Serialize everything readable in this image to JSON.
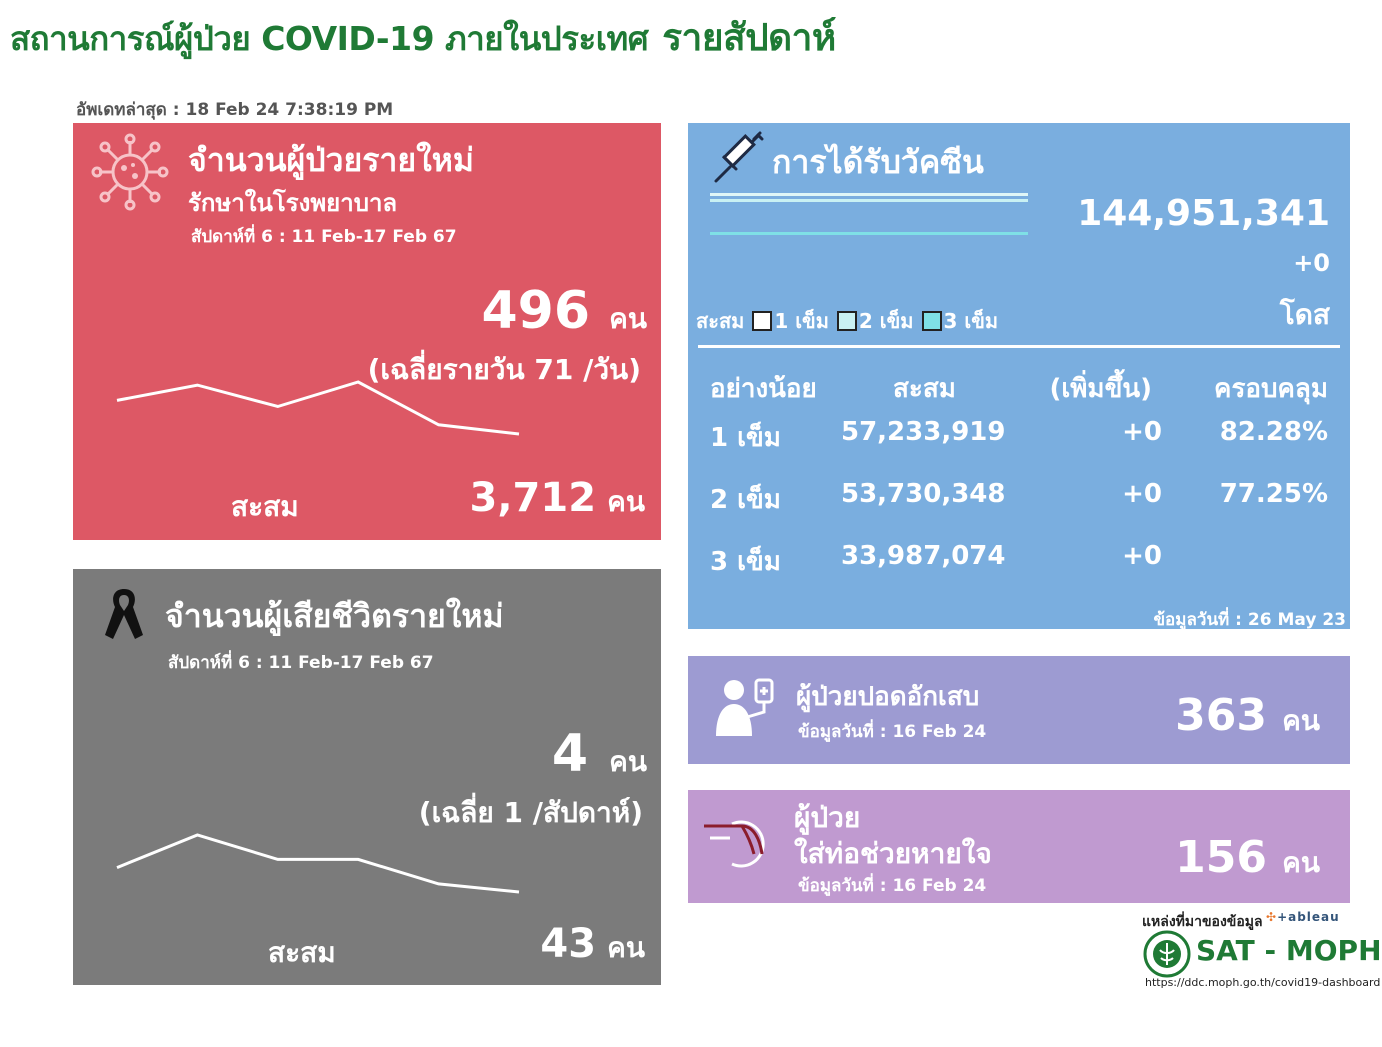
{
  "header": {
    "title": "สถานการณ์ผู้ป่วย COVID-19 ภายในประเทศ",
    "title_weekly": "รายสัปดาห์",
    "updated_label": "อัพเดทล่าสุด : 18 Feb 24 7:38:19 PM"
  },
  "new_cases": {
    "title": "จำนวนผู้ป่วยรายใหม่",
    "subtitle": "รักษาในโรงพยาบาล",
    "week": "สัปดาห์ที่ 6 : 11 Feb-17 Feb 67",
    "value": "496",
    "unit": "คน",
    "avg": "(เฉลี่ยรายวัน 71 /วัน)",
    "cum_label": "สะสม",
    "cum_value": "3,712",
    "cum_unit": "คน",
    "trend": [
      60,
      65,
      58,
      66,
      52,
      49
    ],
    "icon": "virus-icon"
  },
  "deaths": {
    "title": "จำนวนผู้เสียชีวิตรายใหม่",
    "week": "สัปดาห์ที่  6 : 11 Feb-17 Feb 67",
    "value": "4",
    "unit": "คน",
    "avg": "(เฉลี่ย 1 /สัปดาห์)",
    "cum_label": "สะสม",
    "cum_value": "43",
    "cum_unit": "คน",
    "trend": [
      5,
      9,
      6,
      6,
      3,
      2
    ],
    "icon": "ribbon-icon"
  },
  "vaccine": {
    "title": "การได้รับวัคซีน",
    "total": "144,951,341",
    "delta": "+0",
    "unit": "โดส",
    "legend_label": "สะสม",
    "legend": [
      {
        "label": "1 เข็ม",
        "color": "#ffffff"
      },
      {
        "label": "2 เข็ม",
        "color": "#c9f1f3"
      },
      {
        "label": "3 เข็ม",
        "color": "#7fe0e6"
      }
    ],
    "columns": [
      "อย่างน้อย",
      "สะสม",
      "(เพิ่มขึ้น)",
      "ครอบคลุม"
    ],
    "rows": [
      {
        "dose": "1 เข็ม",
        "cum": "57,233,919",
        "inc": "+0",
        "cov": "82.28%"
      },
      {
        "dose": "2 เข็ม",
        "cum": "53,730,348",
        "inc": "+0",
        "cov": "77.25%"
      },
      {
        "dose": "3 เข็ม",
        "cum": "33,987,074",
        "inc": "+0",
        "cov": ""
      }
    ],
    "data_date": "ข้อมูลวันที่ : 26 May 23",
    "icon": "syringe-icon"
  },
  "pneumonia": {
    "title": "ผู้ป่วยปอดอักเสบ",
    "data_date": "ข้อมูลวันที่ : 16 Feb 24",
    "value": "363",
    "unit": "คน",
    "icon": "patient-iv-icon"
  },
  "ventilator": {
    "title1": "ผู้ป่วย",
    "title2": "ใส่ท่อช่วยหายใจ",
    "data_date": "ข้อมูลวันที่ : 16 Feb 24",
    "value": "156",
    "unit": "คน",
    "icon": "intubation-icon"
  },
  "source": {
    "label": "แหล่งที่มาของข้อมูล",
    "tableau": "+ableau",
    "org": "SAT - MOPH",
    "url": "https://ddc.moph.go.th/covid19-dashboard"
  },
  "colors": {
    "new_panel": "#dd5865",
    "death_panel": "#7b7b7b",
    "vaccine_panel": "#7aaedf",
    "pneumonia_panel": "#9d9bd2",
    "ventilator_panel": "#c09ad0",
    "title_green": "#1f7a35"
  }
}
